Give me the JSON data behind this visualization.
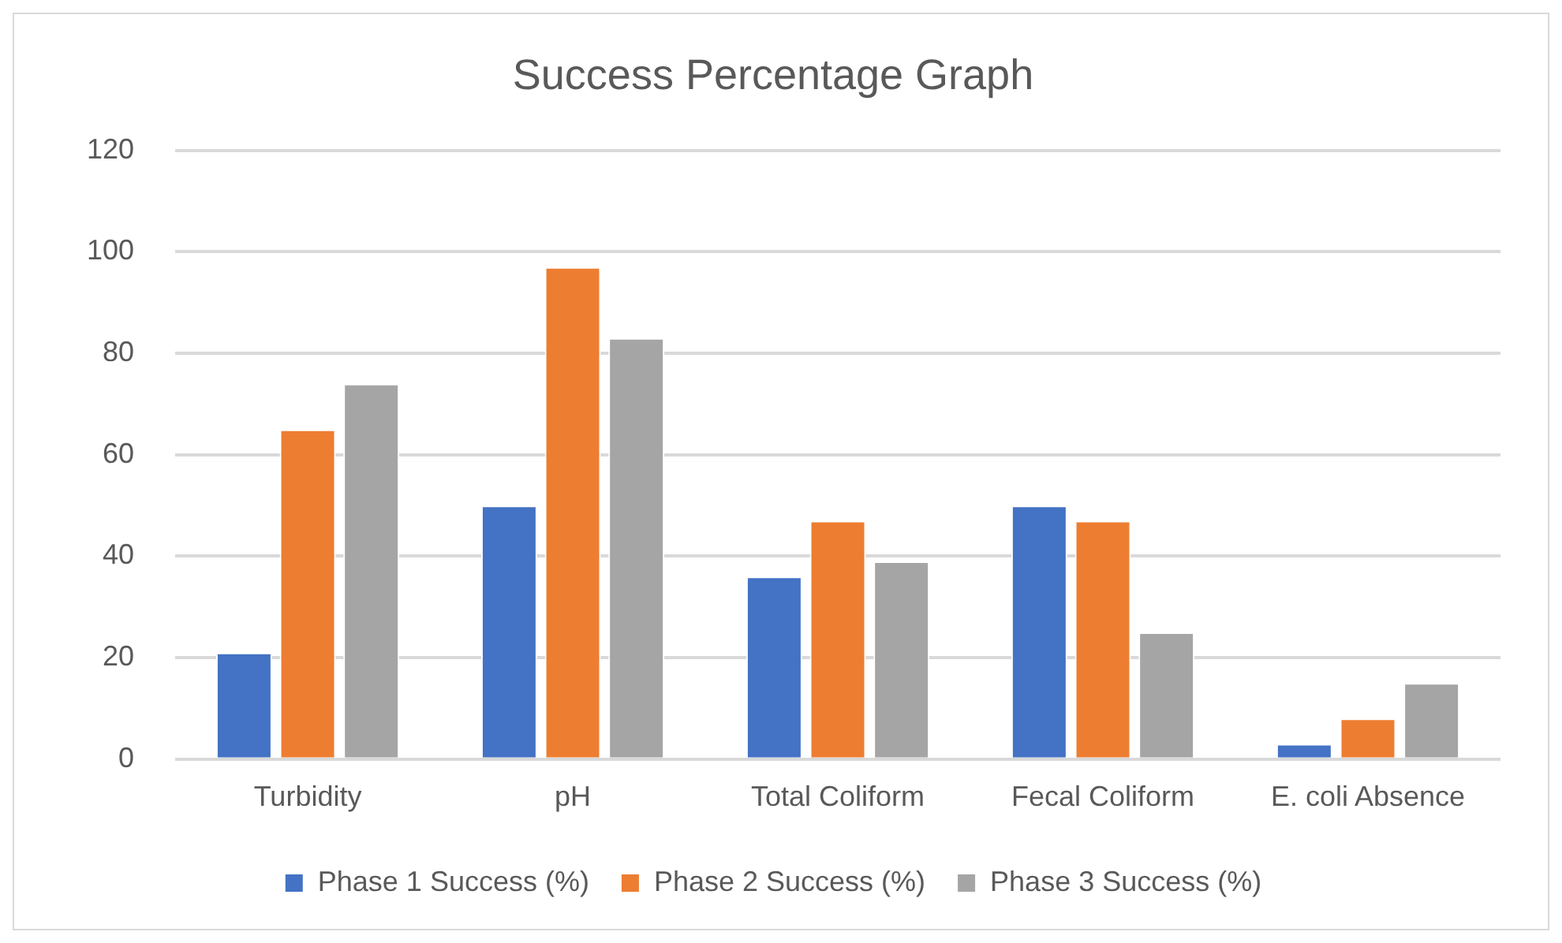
{
  "chart_data": {
    "type": "bar",
    "title": "Success Percentage Graph",
    "categories": [
      "Turbidity",
      "pH",
      "Total Coliform",
      "Fecal Coliform",
      "E. coli Absence"
    ],
    "series": [
      {
        "name": "Phase 1 Success (%)",
        "color": "#4472c4",
        "values": [
          21,
          50,
          36,
          50,
          3
        ]
      },
      {
        "name": "Phase 2 Success (%)",
        "color": "#ed7d31",
        "values": [
          65,
          97,
          47,
          47,
          8
        ]
      },
      {
        "name": "Phase 3 Success (%)",
        "color": "#a5a5a5",
        "values": [
          74,
          83,
          39,
          25,
          15
        ]
      }
    ],
    "ylim": [
      0,
      120
    ],
    "yticks": [
      0,
      20,
      40,
      60,
      80,
      100,
      120
    ],
    "grid": "y",
    "legend": "bottom"
  }
}
